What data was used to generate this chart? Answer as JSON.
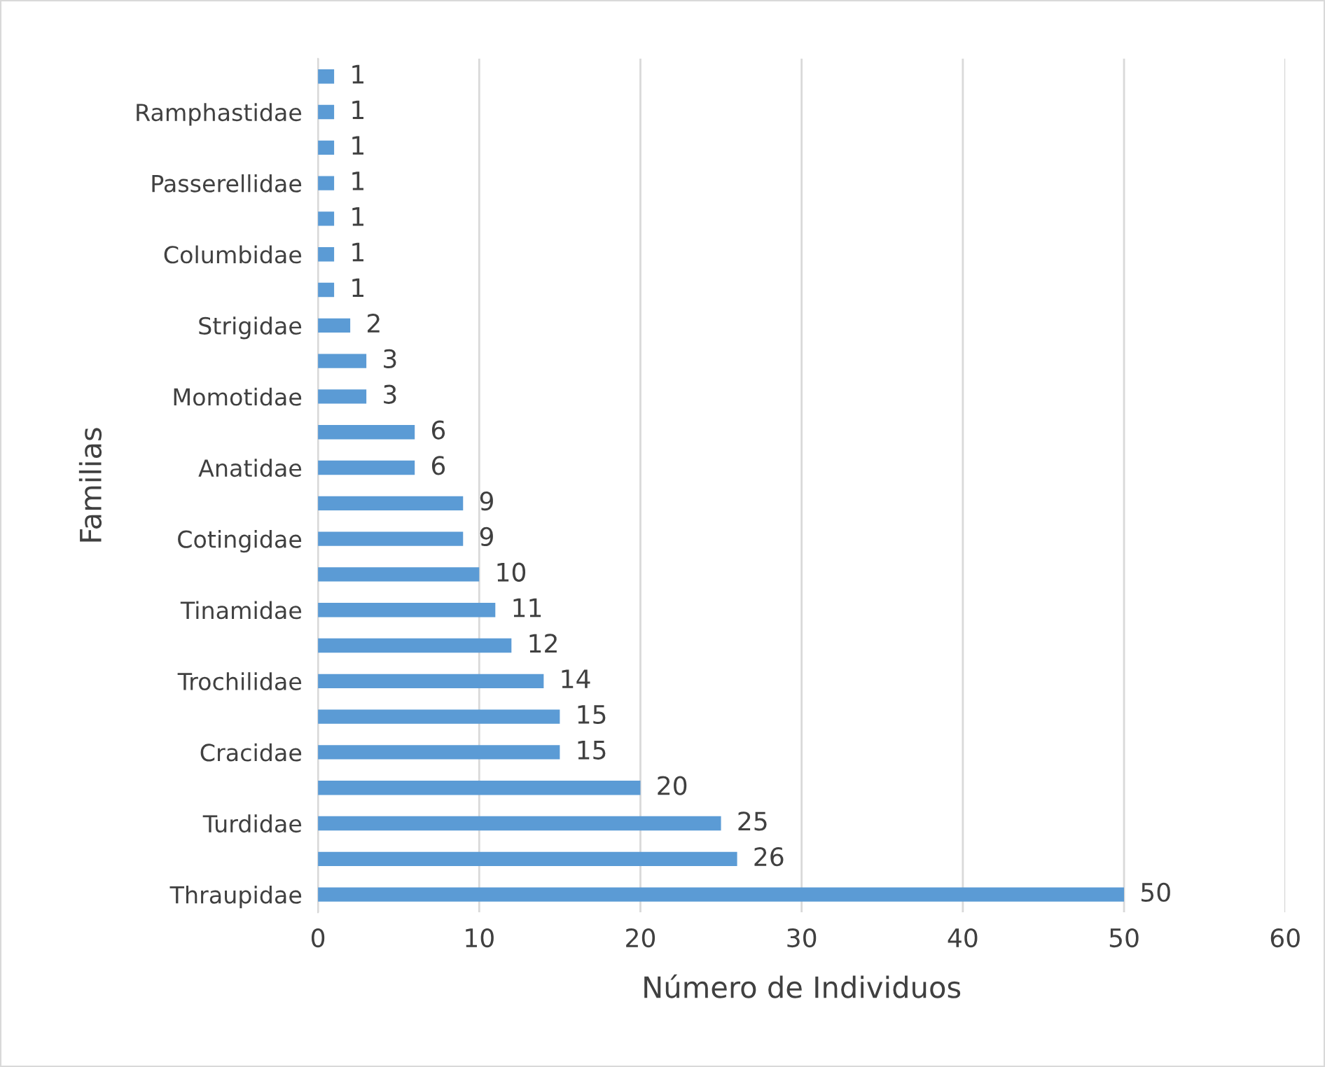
{
  "chart_data": {
    "type": "bar",
    "orientation": "horizontal",
    "xlabel": "Número de Individuos",
    "ylabel": "Familias",
    "categories": [
      null,
      "Ramphastidae",
      null,
      "Passerellidae",
      null,
      "Columbidae",
      null,
      "Strigidae",
      null,
      "Momotidae",
      null,
      "Anatidae",
      null,
      "Cotingidae",
      null,
      "Tinamidae",
      null,
      "Trochilidae",
      null,
      "Cracidae",
      null,
      "Turdidae",
      null,
      "Thraupidae"
    ],
    "values": [
      1,
      1,
      1,
      1,
      1,
      1,
      1,
      2,
      3,
      3,
      6,
      6,
      9,
      9,
      10,
      11,
      12,
      14,
      15,
      15,
      20,
      25,
      26,
      50
    ],
    "color": "#5b9bd5",
    "xlim": [
      0,
      60
    ],
    "xticks": [
      0,
      10,
      20,
      30,
      40,
      50,
      60
    ],
    "grid": "x",
    "data_labels": true,
    "legend": false
  }
}
